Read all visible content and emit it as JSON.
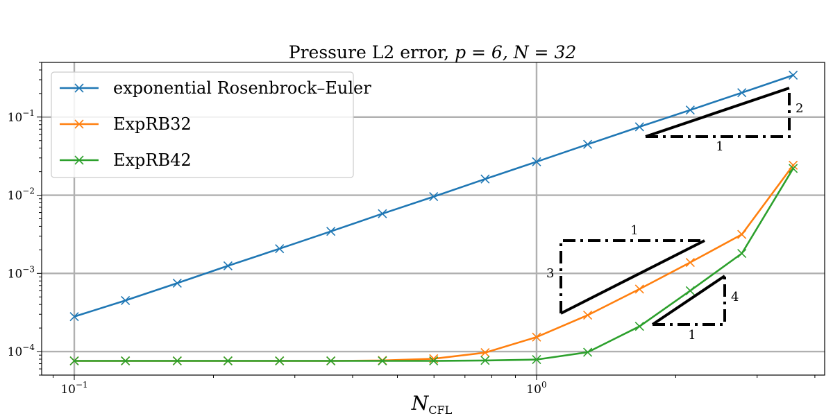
{
  "chart_data": {
    "type": "line",
    "title_prefix": "Pressure L2 error, ",
    "title_math": "p = 6, N = 32",
    "xlabel_main": "N",
    "xlabel_sub": "CFL",
    "xscale": "log",
    "yscale": "log",
    "xlim": [
      0.085,
      4.2
    ],
    "ylim": [
      5e-05,
      0.5
    ],
    "grid": true,
    "legend_position": "upper-left",
    "x_ticks": [
      {
        "value": 0.1,
        "label": "10",
        "exp": "−1"
      },
      {
        "value": 1,
        "label": "10",
        "exp": "0"
      }
    ],
    "y_ticks": [
      {
        "value": 0.1,
        "label": "10",
        "exp": "−1"
      },
      {
        "value": 0.01,
        "label": "10",
        "exp": "−2"
      },
      {
        "value": 0.001,
        "label": "10",
        "exp": "−3"
      },
      {
        "value": 0.0001,
        "label": "10",
        "exp": "−4"
      }
    ],
    "x": [
      0.1,
      0.129,
      0.167,
      0.215,
      0.278,
      0.359,
      0.464,
      0.599,
      0.774,
      1.0,
      1.29,
      1.67,
      2.15,
      2.78,
      3.59
    ],
    "series": [
      {
        "name": "exponential Rosenbrock–Euler",
        "color": "#1f77b4",
        "values": [
          0.00028,
          0.00045,
          0.00075,
          0.00125,
          0.00207,
          0.00345,
          0.0058,
          0.0096,
          0.0161,
          0.0268,
          0.0447,
          0.075,
          0.123,
          0.205,
          0.343
        ]
      },
      {
        "name": "ExpRB32",
        "color": "#ff7f0e",
        "values": [
          7.6e-05,
          7.6e-05,
          7.6e-05,
          7.6e-05,
          7.6e-05,
          7.6e-05,
          7.7e-05,
          8.1e-05,
          9.7e-05,
          0.000153,
          0.000292,
          0.00063,
          0.00138,
          0.00315,
          0.0242
        ]
      },
      {
        "name": "ExpRB42",
        "color": "#2ca02c",
        "values": [
          7.6e-05,
          7.6e-05,
          7.6e-05,
          7.6e-05,
          7.6e-05,
          7.6e-05,
          7.6e-05,
          7.6e-05,
          7.7e-05,
          7.9e-05,
          9.8e-05,
          0.00021,
          0.0006,
          0.0018,
          0.022
        ]
      }
    ],
    "slope_triangles": [
      {
        "name": "slope-2",
        "run_label": "1",
        "rise_label": "2"
      },
      {
        "name": "slope-3",
        "run_label": "1",
        "rise_label": "3"
      },
      {
        "name": "slope-4",
        "run_label": "1",
        "rise_label": "4"
      }
    ]
  }
}
